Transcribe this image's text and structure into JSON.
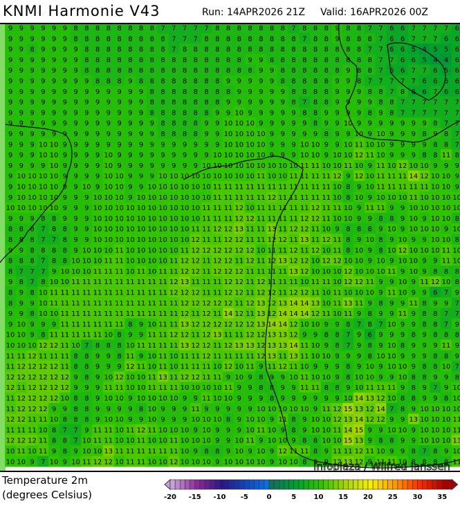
{
  "header": {
    "title": "KNMI Harmonie V43",
    "run": "Run: 14APR2026 21Z",
    "valid": "Valid: 16APR2026 00Z"
  },
  "legend": {
    "line1": "Temperature 2m",
    "line2": "(degrees Celsius)",
    "ticks": [
      "-20",
      "-15",
      "-10",
      "-5",
      "0",
      "5",
      "10",
      "15",
      "20",
      "25",
      "30",
      "35"
    ],
    "range": [
      -20,
      37
    ],
    "colors": {
      "-20": "#c8a0d8",
      "-15": "#8a2a98",
      "-10": "#2a1488",
      "-5": "#1048c0",
      "-1": "#0a70e0",
      "0": "#10705a",
      "5": "#00a030",
      "10": "#30c400",
      "15": "#a8d400",
      "20": "#f4f000",
      "25": "#ff9800",
      "30": "#ff2a00",
      "35": "#a80000"
    }
  },
  "watermark": "Infoplaza / Wilfred Janssen",
  "grid_rows": [
    "9 9 9 9 9 9 8 8 8 8 8 8 8 8 7 7 7 7 7 8 8 8 8 8 8 8 7 8 8 8 9 8 8 7 7 6 6 7 7 7 7 6",
    "9 9 9 9 9 9 8 8 8 8 8 8 8 8 8 7 7 7 8 8 8 8 8 8 8 8 8 7 8 8 9 8 8 8 7 6 6 7 7 7 6 6",
    "9 9 8 9 9 9 9 8 8 8 8 8 8 8 8 7 8 8 8 8 8 8 8 8 8 8 8 8 8 8 8 8 8 7 7 6 6 5 4 5 5 6",
    "9 9 9 9 9 9 9 8 8 8 8 8 8 8 8 8 8 8 8 8 8 8 9 9 8 8 8 8 8 8 8 8 8 8 7 7 6 6 5 4 4 6",
    "9 9 9 9 9 9 9 8 8 8 8 8 8 8 8 8 8 8 8 8 8 8 8 9 9 8 8 8 8 8 8 9 8 8 7 6 6 7 7 6 5 6",
    "9 9 9 9 9 9 9 9 8 8 8 9 8 8 8 8 8 8 8 8 9 9 9 9 9 8 8 8 8 8 9 9 8 7 7 7 7 7 6 6 6 6",
    "9 9 9 9 9 9 9 9 9 9 9 9 9 8 8 8 8 8 8 8 8 9 9 9 9 9 8 8 8 8 9 9 9 8 8 7 8 6 6 7 6 6",
    "9 9 9 9 9 9 9 9 9 9 9 9 9 8 8 8 8 8 8 8 9 9 9 9 9 9 8 7 8 8 9 9 9 9 8 8 7 7 7 7 7 7",
    "9 9 9 9 9 9 9 9 9 9 9 9 9 8 8 8 8 8 8 9 9 10 9 9 9 9 9 8 8 9 9 9 9 8 9 8 7 7 7 7 7 7",
    "9 9 9 9 9 9 9 9 9 9 9 9 9 9 8 8 8 8 9 9 10 10 10 9 9 9 9 9 8 9 9 10 9 9 9 9 9 9 9 8 7 7",
    "9 9 9 9 9 9 9 9 9 9 9 9 9 9 8 8 8 8 9 9 10 10 10 10 9 9 9 9 9 8 9 9 10 9 10 9 9 9 8 9 8 7",
    "9 9 9 10 10 9 9 9 9 9 9 9 9 9 9 9 9 9 9 9 10 10 10 10 9 9 9 10 10 9 9 10 11 10 10 9 9 9 9 8 8 7",
    "9 9 9 10 10 9 9 9 9 10 9 9 9 9 9 9 9 9 9 10 10 10 10 10 9 9 9 10 10 9 10 10 12 11 10 9 9 9 8 8 11 8",
    "9 9 9 9 10 9 9 9 9 10 9 9 9 9 9 9 9 9 10 10 10 10 10 10 10 10 10 11 11 10 10 11 10 9 11 10 12 10 10 9 9 9",
    "9 10 10 10 10 9 9 9 9 10 10 9 9 9 10 10 10 10 10 10 10 10 10 11 10 10 11 11 11 11 12 9 12 10 11 11 11 14 12 10 10 9",
    "9 10 10 10 10 9 9 10 9 10 10 9 9 10 10 10 10 10 10 11 11 11 11 11 11 11 11 11 11 11 10 8 9 10 11 11 11 11 11 10 10 9",
    "9 10 10 10 10 9 9 9 10 10 10 9 10 10 10 10 10 10 10 11 11 11 11 11 12 11 11 11 11 11 10 8 10 9 10 10 10 11 10 10 10 10",
    "10 10 10 10 10 9 9 9 10 10 10 10 10 10 10 10 10 10 11 11 11 12 10 11 11 11 11 11 12 11 11 10 9 11 11 9 9 10 10 10 10 10",
    "9 9 9 8 8 9 9 9 10 10 10 10 10 10 10 10 10 10 11 11 11 12 12 11 11 11 11 12 12 11 10 10 9 9 8 8 9 10 9 10 10 8",
    "8 8 8 7 8 8 9 9 10 10 10 10 10 10 10 10 10 11 11 12 12 13 11 11 13 11 12 12 11 10 9 8 8 8 9 10 9 10 10 10 9 10",
    "8 8 8 7 7 8 9 9 10 10 10 10 10 10 10 10 10 12 11 11 12 12 11 11 12 12 11 13 11 12 11 8 9 10 8 9 10 9 9 10 10 8",
    "9 9 8 8 8 8 9 10 10 10 11 10 10 10 10 10 11 12 12 12 12 12 12 10 11 11 12 11 12 10 11 8 10 9 8 10 12 10 10 10 11 10",
    "8 8 8 7 8 8 10 10 10 11 11 10 10 10 10 11 12 12 11 12 12 11 12 11 12 13 12 12 10 12 12 10 10 9 10 9 10 10 9 9 11 10",
    "8 7 7 7 9 10 10 10 11 11 11 10 11 10 11 11 12 12 11 12 12 12 11 11 11 11 13 12 10 10 10 12 10 10 10 11 9 10 9 8 8 8",
    "9 8 7 8 10 10 11 11 11 11 11 11 11 11 11 12 13 11 11 11 12 12 11 12 11 11 11 10 11 11 10 12 12 11 9 9 10 9 11 12 10 8",
    "8 9 8 10 11 11 11 11 11 11 11 11 11 11 11 12 12 12 11 11 12 12 11 12 12 11 12 12 11 10 11 10 10 10 9 11 10 9 9 6 7 9",
    "8 9 9 10 11 11 11 11 11 11 11 11 11 11 11 11 12 12 12 12 12 11 12 13 12 13 14 14 13 10 11 13 11 9 8 9 9 11 8 9 9 7",
    "9 9 8 10 10 11 11 11 11 11 11 11 11 11 11 11 12 11 12 11 14 12 11 13 12 14 14 14 12 11 10 11 9 8 9 9 11 9 8 8 7 7",
    "9 10 9 9 9 11 11 11 11 11 11 8 9 10 11 11 13 12 12 12 12 12 12 13 14 14 12 10 10 9 9 8 7 8 7 10 9 9 8 8 7 9",
    "10 10 9 8 11 11 11 11 11 10 8 9 9 11 11 12 12 11 12 13 11 11 12 12 13 13 12 9 9 8 8 7 9 6 9 9 9 8 9 8 8 8",
    "10 10 10 12 12 11 10 7 8 8 8 10 11 11 11 11 13 12 12 11 12 13 13 12 13 13 14 11 10 9 8 7 9 8 9 10 8 9 9 9 11 9",
    "11 11 12 11 11 11 8 8 9 9 8 11 9 10 11 10 11 11 12 11 11 11 11 12 13 11 13 11 10 10 9 9 9 8 10 10 9 9 9 8 8 9",
    "11 12 12 12 12 11 8 8 9 9 9 12 11 10 11 10 11 11 11 10 12 10 11 9 11 12 11 10 9 9 9 8 9 10 9 10 10 9 8 8 10 7",
    "12 12 12 12 12 12 9 8 9 10 12 10 10 11 13 11 12 12 11 11 9 10 9 8 9 9 10 11 10 10 9 8 10 10 9 9 10 8 8 9 9 8",
    "12 11 12 12 12 12 9 9 9 11 11 10 10 11 11 11 10 10 10 10 11 9 9 8 8 9 9 11 11 8 8 9 10 11 11 11 9 8 9 7 9 10",
    "11 12 12 12 12 10 8 8 9 10 10 9 10 10 10 10 9 9 11 10 10 9 9 9 8 9 9 9 9 9 9 10 14 13 12 10 8 8 9 9 8 10",
    "11 12 12 12 9 9 8 8 9 9 9 9 8 10 9 9 9 11 9 9 9 9 9 10 10 10 10 10 9 11 12 15 13 12 14 7 8 9 10 10 10 10",
    "12 12 11 11 10 8 8 8 9 10 10 9 9 10 9 9 9 10 10 10 8 9 10 10 9 11 8 9 10 10 12 13 14 12 12 9 9 13 10 10 10 11",
    "11 11 11 10 8 7 7 9 11 11 10 11 12 11 10 10 10 9 10 9 9 9 10 11 10 9 8 9 10 10 11 14 15 9 9 10 10 9 10 10 10 11",
    "12 12 12 11 8 8 7 10 11 11 10 10 11 10 10 11 10 10 10 9 9 10 11 9 10 10 9 8 8 10 10 15 13 9 8 8 9 9 10 10 10 13",
    "10 11 10 11 9 8 9 10 10 13 11 11 11 11 11 11 10 9 8 8 9 10 9 10 9 12 11 11 8 9 11 11 12 11 10 9 9 8 7 8 9 10",
    "10 10 9 7 10 9 10 11 12 12 10 11 11 10 10 12 10 10 10 9 10 10 10 10 9 10 10 8 9 9 12 13 12 9 11 11 10 8 8 8 8 11"
  ]
}
